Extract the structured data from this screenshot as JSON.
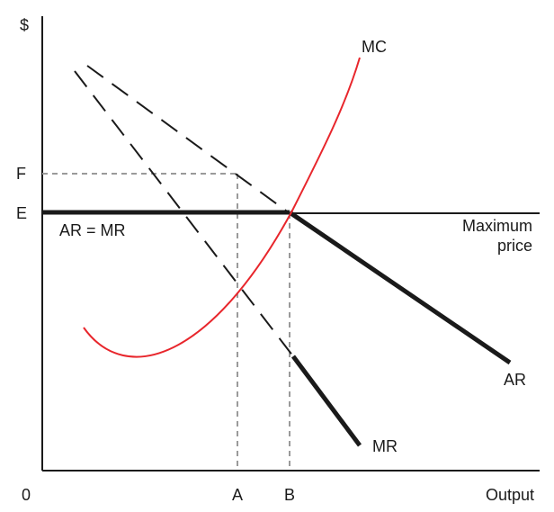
{
  "diagram": {
    "axis_labels": {
      "y": "$",
      "x": "Output",
      "origin": "0"
    },
    "price_ticks": {
      "f": "F",
      "e": "E"
    },
    "output_ticks": {
      "a": "A",
      "b": "B"
    },
    "curve_labels": {
      "mc": "MC",
      "ar_mr": "AR = MR",
      "max_price_line1": "Maximum",
      "max_price_line2": "price",
      "ar": "AR",
      "mr": "MR"
    },
    "colors": {
      "mc_curve": "#e8262c",
      "lines": "#1a1a1a",
      "guides": "#9a9a9a"
    }
  }
}
